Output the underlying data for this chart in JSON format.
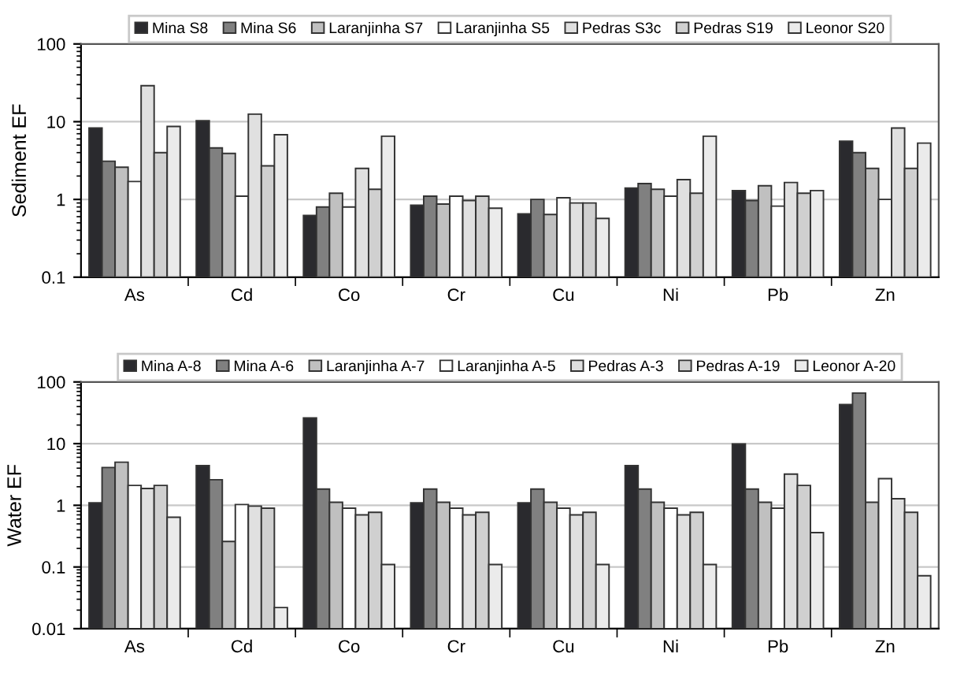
{
  "chart_data": [
    {
      "type": "bar",
      "ylabel": "Sediment EF",
      "log": "y",
      "ylim": [
        0.1,
        100
      ],
      "yticks": [
        0.1,
        1,
        10,
        100
      ],
      "grid": "y",
      "legend": "top",
      "categories": [
        "As",
        "Cd",
        "Co",
        "Cr",
        "Cu",
        "Ni",
        "Pb",
        "Zn"
      ],
      "series": [
        {
          "name": "Mina S8",
          "color": "#2a2a2e",
          "values": [
            8.3,
            10.3,
            0.62,
            0.84,
            0.65,
            1.4,
            1.3,
            5.6
          ]
        },
        {
          "name": "Mina S6",
          "color": "#808080",
          "values": [
            3.1,
            4.6,
            0.8,
            1.1,
            1.0,
            1.6,
            0.97,
            4.0
          ]
        },
        {
          "name": "Laranjinha S7",
          "color": "#c0c0c0",
          "values": [
            2.6,
            3.9,
            1.2,
            0.87,
            0.64,
            1.35,
            1.5,
            2.5
          ]
        },
        {
          "name": "Laranjinha S5",
          "color": "#ffffff",
          "values": [
            1.7,
            1.1,
            0.8,
            1.1,
            1.05,
            1.1,
            0.82,
            1.0
          ]
        },
        {
          "name": "Pedras S3c",
          "color": "#e0e0e0",
          "values": [
            29,
            12.5,
            2.5,
            0.97,
            0.9,
            1.8,
            1.65,
            8.3
          ]
        },
        {
          "name": "Pedras S19",
          "color": "#d0d0d0",
          "values": [
            4.0,
            2.7,
            1.35,
            1.1,
            0.9,
            1.2,
            1.2,
            2.5
          ]
        },
        {
          "name": "Leonor S20",
          "color": "#ebebeb",
          "values": [
            8.7,
            6.8,
            6.5,
            0.77,
            0.57,
            6.5,
            1.3,
            5.3
          ]
        }
      ]
    },
    {
      "type": "bar",
      "ylabel": "Water EF",
      "log": "y",
      "ylim": [
        0.01,
        100
      ],
      "yticks": [
        0.01,
        0.1,
        1,
        10,
        100
      ],
      "grid": "y",
      "legend": "top",
      "categories": [
        "As",
        "Cd",
        "Co",
        "Cr",
        "Cu",
        "Ni",
        "Pb",
        "Zn"
      ],
      "series": [
        {
          "name": "Mina A-8",
          "color": "#2a2a2e",
          "values": [
            1.1,
            4.4,
            26,
            1.1,
            1.1,
            4.4,
            9.9,
            43
          ]
        },
        {
          "name": "Mina A-6",
          "color": "#808080",
          "values": [
            4.1,
            2.6,
            1.83,
            1.83,
            1.83,
            1.83,
            1.83,
            66
          ]
        },
        {
          "name": "Laranjinha A-7",
          "color": "#c0c0c0",
          "values": [
            5.0,
            0.26,
            1.12,
            1.12,
            1.12,
            1.12,
            1.12,
            1.12
          ]
        },
        {
          "name": "Laranjinha A-5",
          "color": "#ffffff",
          "values": [
            2.1,
            1.03,
            0.9,
            0.9,
            0.9,
            0.9,
            0.9,
            2.7
          ]
        },
        {
          "name": "Pedras A-3",
          "color": "#e0e0e0",
          "values": [
            1.87,
            0.97,
            0.7,
            0.7,
            0.7,
            0.7,
            3.2,
            1.28
          ]
        },
        {
          "name": "Pedras A-19",
          "color": "#d0d0d0",
          "values": [
            2.1,
            0.9,
            0.77,
            0.77,
            0.77,
            0.77,
            2.1,
            0.77
          ]
        },
        {
          "name": "Leonor A-20",
          "color": "#ebebeb",
          "values": [
            0.64,
            0.022,
            0.11,
            0.11,
            0.11,
            0.11,
            0.36,
            0.072
          ]
        }
      ]
    }
  ]
}
